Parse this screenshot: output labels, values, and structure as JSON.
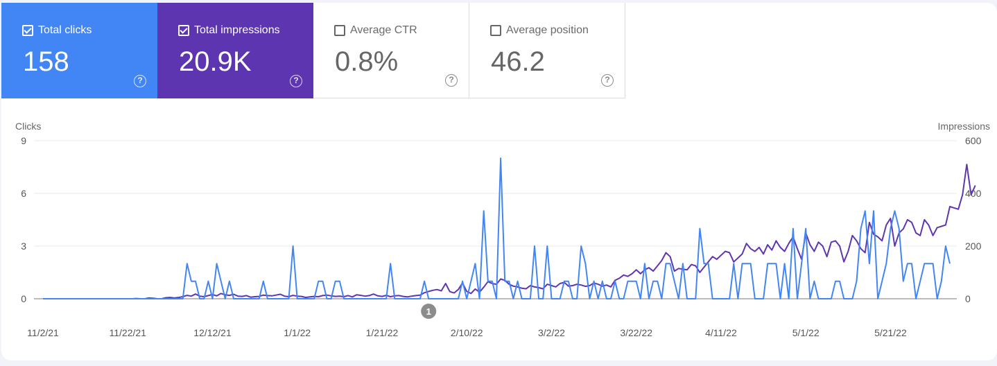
{
  "colors": {
    "clicks": "#4285f4",
    "impressions": "#5e35b1",
    "grid": "#e8e8e8",
    "baseline": "#777777"
  },
  "metric_cards": [
    {
      "label": "Total clicks",
      "value": "158",
      "checked": true,
      "bg": "#4285f4"
    },
    {
      "label": "Total impressions",
      "value": "20.9K",
      "checked": true,
      "bg": "#5e35b1"
    },
    {
      "label": "Average CTR",
      "value": "0.8%",
      "checked": false,
      "bg": "#ffffff"
    },
    {
      "label": "Average position",
      "value": "46.2",
      "checked": false,
      "bg": "#ffffff"
    }
  ],
  "help_glyph": "?",
  "chart_data": {
    "type": "line",
    "ylabel_left": "Clicks",
    "ylabel_right": "Impressions",
    "ylim_left": [
      0,
      9
    ],
    "ylim_right": [
      0,
      600
    ],
    "yticks_left": [
      "0",
      "3",
      "6",
      "9"
    ],
    "yticks_right": [
      "0",
      "200",
      "400",
      "600"
    ],
    "x_start": "11/2/21",
    "x_end": "5/25/22",
    "xticks": [
      {
        "label": "11/2/21",
        "day": 0
      },
      {
        "label": "11/22/21",
        "day": 20
      },
      {
        "label": "12/12/21",
        "day": 40
      },
      {
        "label": "1/1/22",
        "day": 60
      },
      {
        "label": "1/21/22",
        "day": 80
      },
      {
        "label": "2/10/22",
        "day": 100
      },
      {
        "label": "3/2/22",
        "day": 120
      },
      {
        "label": "3/22/22",
        "day": 140
      },
      {
        "label": "4/11/22",
        "day": 160
      },
      {
        "label": "5/1/22",
        "day": 180
      },
      {
        "label": "5/21/22",
        "day": 200
      }
    ],
    "annotation": {
      "label": "1",
      "day": 91
    },
    "series": [
      {
        "name": "Clicks",
        "axis": "left",
        "values": [
          0,
          0,
          0,
          0,
          0,
          0,
          0,
          0,
          0,
          0,
          0,
          0,
          0,
          0,
          0,
          0,
          0,
          0,
          0,
          0,
          0,
          0,
          0,
          0,
          0,
          0,
          0,
          0,
          0,
          0,
          0,
          0,
          0,
          0,
          2,
          1,
          1,
          0,
          0,
          1,
          0,
          2,
          1,
          0,
          1,
          0,
          0,
          0,
          0,
          0,
          0,
          0,
          1,
          0,
          0,
          0,
          0,
          0,
          0,
          3,
          0,
          0,
          0,
          0,
          0,
          1,
          1,
          0,
          0,
          1,
          1,
          0,
          0,
          0,
          0,
          0,
          0,
          0,
          0,
          0,
          0,
          0,
          2,
          0,
          0,
          0,
          0,
          0,
          0,
          0,
          1,
          0,
          0,
          0,
          0,
          0,
          0,
          0,
          0,
          1,
          0,
          1,
          2,
          0,
          5,
          1,
          1,
          0,
          8,
          1,
          1,
          0,
          1,
          0,
          0,
          0,
          3,
          0,
          0,
          3,
          0,
          0,
          0,
          1,
          1,
          0,
          0,
          3,
          2,
          0,
          1,
          0,
          1,
          0,
          0,
          1,
          0,
          0,
          1,
          1,
          1,
          0,
          2,
          0,
          1,
          1,
          0,
          2,
          2,
          1,
          0,
          2,
          0,
          0,
          0,
          4,
          2,
          2,
          0,
          0,
          0,
          0,
          0,
          2,
          0,
          2,
          2,
          2,
          0,
          0,
          0,
          2,
          2,
          2,
          0,
          2,
          0,
          4,
          0,
          2,
          4,
          0,
          1,
          0,
          0,
          0,
          0,
          1,
          1,
          0,
          0,
          0,
          1,
          4,
          5,
          2,
          5,
          0,
          1,
          2,
          4,
          5,
          4,
          1,
          2,
          2,
          0,
          1,
          2,
          2,
          2,
          0,
          1,
          3,
          2
        ]
      },
      {
        "name": "Impressions",
        "axis": "right",
        "values": [
          0,
          0,
          0,
          0,
          0,
          0,
          0,
          0,
          0,
          0,
          0,
          0,
          0,
          0,
          0,
          0,
          0,
          0,
          0,
          0,
          0,
          0,
          1,
          0,
          0,
          3,
          2,
          0,
          0,
          4,
          5,
          3,
          5,
          8,
          13,
          10,
          18,
          10,
          8,
          12,
          16,
          11,
          20,
          15,
          13,
          17,
          10,
          9,
          12,
          6,
          8,
          9,
          14,
          12,
          11,
          14,
          17,
          10,
          8,
          13,
          10,
          9,
          5,
          7,
          9,
          8,
          12,
          14,
          11,
          9,
          10,
          8,
          12,
          7,
          15,
          13,
          10,
          12,
          18,
          11,
          9,
          13,
          8,
          11,
          12,
          9,
          7,
          10,
          12,
          14,
          23,
          28,
          32,
          35,
          30,
          58,
          27,
          22,
          35,
          60,
          28,
          20,
          37,
          25,
          44,
          65,
          58,
          55,
          75,
          70,
          55,
          48,
          45,
          40,
          38,
          50,
          45,
          42,
          38,
          55,
          50,
          45,
          58,
          62,
          48,
          50,
          55,
          52,
          47,
          50,
          60,
          55,
          48,
          52,
          45,
          70,
          78,
          90,
          85,
          95,
          110,
          95,
          110,
          118,
          105,
          125,
          145,
          175,
          160,
          105,
          115,
          112,
          110,
          130,
          125,
          100,
          120,
          140,
          160,
          150,
          165,
          180,
          175,
          140,
          155,
          170,
          210,
          190,
          180,
          195,
          170,
          205,
          185,
          220,
          195,
          180,
          210,
          235,
          190,
          150,
          250,
          205,
          180,
          215,
          200,
          160,
          215,
          220,
          200,
          140,
          180,
          240,
          220,
          190,
          175,
          290,
          245,
          235,
          220,
          280,
          305,
          200,
          250,
          265,
          300,
          290,
          250,
          240,
          300,
          280,
          240,
          270,
          275,
          280,
          350,
          345,
          340,
          395,
          510,
          395,
          430
        ]
      }
    ]
  }
}
